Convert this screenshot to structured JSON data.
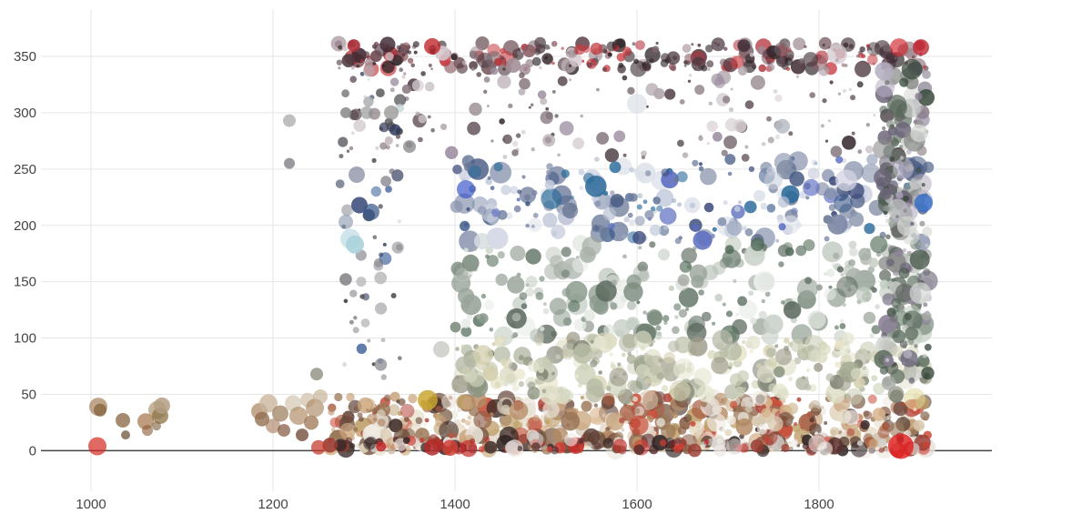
{
  "chart_data": {
    "type": "scatter",
    "title": "",
    "xlabel": "",
    "ylabel": "",
    "xlim": [
      945,
      1990
    ],
    "ylim": [
      -36,
      392
    ],
    "x_ticks": [
      1000,
      1200,
      1400,
      1600,
      1800
    ],
    "y_ticks": [
      0,
      50,
      100,
      150,
      200,
      250,
      300,
      350
    ],
    "x_tick_labels": [
      "1000",
      "1200",
      "1400",
      "1600",
      "1800"
    ],
    "y_tick_labels": [
      "0",
      "50",
      "100",
      "150",
      "200",
      "250",
      "300",
      "350"
    ],
    "grid": true,
    "legend": "none",
    "zero_line_color": "#444444",
    "encoding": "x = year, y = hue angle (degrees), point size and fill = size and color of each item",
    "points": [
      {
        "x": 1007,
        "y": 4,
        "size": 10,
        "color": "#d42b24"
      },
      {
        "x": 1008,
        "y": 39,
        "size": 10,
        "color": "#a07a50"
      },
      {
        "x": 1010,
        "y": 36,
        "size": 7,
        "color": "#8b6a44"
      },
      {
        "x": 1035,
        "y": 27,
        "size": 8,
        "color": "#9c7d60"
      },
      {
        "x": 1038,
        "y": 14,
        "size": 5,
        "color": "#6e5338"
      },
      {
        "x": 1060,
        "y": 26,
        "size": 9,
        "color": "#a27246"
      },
      {
        "x": 1062,
        "y": 18,
        "size": 6,
        "color": "#8c5e3a"
      },
      {
        "x": 1073,
        "y": 36,
        "size": 10,
        "color": "#9f8052"
      },
      {
        "x": 1076,
        "y": 31,
        "size": 9,
        "color": "#8c7044"
      },
      {
        "x": 1078,
        "y": 40,
        "size": 9,
        "color": "#b39e84"
      },
      {
        "x": 1072,
        "y": 22,
        "size": 5,
        "color": "#7a5a3a"
      },
      {
        "x": 1185,
        "y": 35,
        "size": 9,
        "color": "#b59272"
      },
      {
        "x": 1188,
        "y": 28,
        "size": 8,
        "color": "#8f6b4c"
      },
      {
        "x": 1195,
        "y": 42,
        "size": 10,
        "color": "#c8b49a"
      },
      {
        "x": 1200,
        "y": 22,
        "size": 8,
        "color": "#a07050"
      },
      {
        "x": 1208,
        "y": 33,
        "size": 9,
        "color": "#9a7a58"
      },
      {
        "x": 1212,
        "y": 18,
        "size": 7,
        "color": "#7a4a30"
      },
      {
        "x": 1218,
        "y": 293,
        "size": 7,
        "color": "#8c8c8c"
      },
      {
        "x": 1218,
        "y": 255,
        "size": 6,
        "color": "#6f6f75"
      },
      {
        "x": 1222,
        "y": 42,
        "size": 9,
        "color": "#c9b79f"
      },
      {
        "x": 1228,
        "y": 31,
        "size": 10,
        "color": "#b08a66"
      },
      {
        "x": 1232,
        "y": 14,
        "size": 7,
        "color": "#6a4330"
      },
      {
        "x": 1238,
        "y": 45,
        "size": 8,
        "color": "#d5c7b3"
      },
      {
        "x": 1242,
        "y": 25,
        "size": 8,
        "color": "#9d7553"
      },
      {
        "x": 1246,
        "y": 38,
        "size": 10,
        "color": "#a6815c"
      },
      {
        "x": 1248,
        "y": 68,
        "size": 7,
        "color": "#9a9a8c"
      },
      {
        "x": 1250,
        "y": 3,
        "size": 8,
        "color": "#c53a2c"
      },
      {
        "x": 1252,
        "y": 48,
        "size": 8,
        "color": "#c0ab8e"
      }
    ],
    "clusters": [
      {
        "x_min": 1262,
        "x_max": 1920,
        "y_min": 0,
        "y_max": 48,
        "count": 620,
        "palette": [
          "#c8a27a",
          "#b48a64",
          "#9a7656",
          "#7a5a44",
          "#5b3f33",
          "#3f2c27",
          "#d8c8ae",
          "#e6dcc6",
          "#a55a3e",
          "#c94d39",
          "#e8e2d8",
          "#bfa06a",
          "#8c6048",
          "#d9b48c",
          "#f0ece4",
          "#b2443a",
          "#6b4a3c",
          "#cfc2b0"
        ],
        "r_min": 2,
        "r_max": 11
      },
      {
        "x_min": 1262,
        "x_max": 1920,
        "y_min": 0,
        "y_max": 10,
        "count": 140,
        "palette": [
          "#c32d2a",
          "#d43f35",
          "#3a2a2a",
          "#5a3030",
          "#efeae6",
          "#d8d3cf",
          "#9a3a30",
          "#2f2222"
        ],
        "r_min": 3,
        "r_max": 10
      },
      {
        "x_min": 1270,
        "x_max": 1920,
        "y_min": 338,
        "y_max": 362,
        "count": 320,
        "palette": [
          "#5a3c44",
          "#6d4a52",
          "#3f2a33",
          "#8a5a62",
          "#b2323a",
          "#c83a40",
          "#7a6a70",
          "#a08c94",
          "#d4c6cc",
          "#4a3a40",
          "#2c2226"
        ],
        "r_min": 1.5,
        "r_max": 9
      },
      {
        "x_min": 1270,
        "x_max": 1920,
        "y_min": 260,
        "y_max": 338,
        "count": 160,
        "palette": [
          "#4b3a42",
          "#6a5a62",
          "#8a7c82",
          "#b3a8ae",
          "#d8d0d4",
          "#3a2e34",
          "#9c8ea0"
        ],
        "r_min": 1.5,
        "r_max": 8
      },
      {
        "x_min": 1400,
        "x_max": 1920,
        "y_min": 185,
        "y_max": 260,
        "count": 260,
        "palette": [
          "#8a94ac",
          "#a4aec4",
          "#c4ccdc",
          "#dde2ea",
          "#5a6a8a",
          "#3c5a8a",
          "#2a6a9a",
          "#6a7a9a",
          "#4c5e86",
          "#b8c0d2",
          "#7a86a4",
          "#cfd4e2",
          "#3b4a7a",
          "#5b6cc0"
        ],
        "r_min": 2,
        "r_max": 12
      },
      {
        "x_min": 1400,
        "x_max": 1920,
        "y_min": 100,
        "y_max": 185,
        "count": 300,
        "palette": [
          "#9aa49a",
          "#b6beb6",
          "#c8d0c8",
          "#8a9a8c",
          "#6a7c6e",
          "#dde4dc",
          "#a8b0a8",
          "#5c6a5e",
          "#7a8a7c",
          "#e8ece8",
          "#4f6a56",
          "#c4cec2"
        ],
        "r_min": 2,
        "r_max": 12
      },
      {
        "x_min": 1400,
        "x_max": 1920,
        "y_min": 48,
        "y_max": 100,
        "count": 320,
        "palette": [
          "#c9ccb4",
          "#b8bca4",
          "#dcdcc4",
          "#a4aa92",
          "#8c9480",
          "#e6e6d2",
          "#d4d0b0",
          "#9c9a88",
          "#e8e4c8",
          "#7c8070",
          "#cfd4bc",
          "#b6b8a6"
        ],
        "r_min": 2,
        "r_max": 12
      },
      {
        "x_min": 1870,
        "x_max": 1920,
        "y_min": 60,
        "y_max": 340,
        "count": 220,
        "palette": [
          "#8a8c8a",
          "#6a6e6a",
          "#a4a8a4",
          "#4c5a4e",
          "#c4c8c4",
          "#6b6478",
          "#8a8096",
          "#3a4a3c",
          "#d6d8d4",
          "#5a6a5c",
          "#b4aec0"
        ],
        "r_min": 2,
        "r_max": 12
      },
      {
        "x_min": 1270,
        "x_max": 1340,
        "y_min": 60,
        "y_max": 340,
        "count": 60,
        "palette": [
          "#6a6a70",
          "#8a8a90",
          "#4a4a50",
          "#2f3a5a",
          "#4a6aa0",
          "#b0b0b4",
          "#3a3a3e",
          "#c9d4d8"
        ],
        "r_min": 2,
        "r_max": 7
      }
    ],
    "highlights": [
      {
        "x": 1303,
        "y": 300,
        "size": 7,
        "color": "#8e8e8e"
      },
      {
        "x": 1280,
        "y": 300,
        "size": 6,
        "color": "#8a8a8a"
      },
      {
        "x": 1292,
        "y": 245,
        "size": 9,
        "color": "#6a6f8c"
      },
      {
        "x": 1295,
        "y": 218,
        "size": 9,
        "color": "#3a4a7a"
      },
      {
        "x": 1280,
        "y": 203,
        "size": 8,
        "color": "#7f8fa6"
      },
      {
        "x": 1285,
        "y": 188,
        "size": 11,
        "color": "#c8e0e8"
      },
      {
        "x": 1290,
        "y": 183,
        "size": 10,
        "color": "#a9d1da"
      },
      {
        "x": 1308,
        "y": 212,
        "size": 9,
        "color": "#3c5a8a"
      },
      {
        "x": 1330,
        "y": 300,
        "size": 8,
        "color": "#8a8a88"
      },
      {
        "x": 1350,
        "y": 270,
        "size": 7,
        "color": "#7a7a7c"
      },
      {
        "x": 1375,
        "y": 359,
        "size": 9,
        "color": "#c0262a"
      },
      {
        "x": 1385,
        "y": 90,
        "size": 9,
        "color": "#b0b0ac"
      },
      {
        "x": 1375,
        "y": 3,
        "size": 9,
        "color": "#b32a2a"
      },
      {
        "x": 1370,
        "y": 45,
        "size": 11,
        "color": "#c9a730"
      },
      {
        "x": 1412,
        "y": 232,
        "size": 10,
        "color": "#3654c8"
      },
      {
        "x": 1430,
        "y": 186,
        "size": 9,
        "color": "#d6dde0"
      },
      {
        "x": 1600,
        "y": 308,
        "size": 11,
        "color": "#dde0e6"
      },
      {
        "x": 1740,
        "y": 150,
        "size": 12,
        "color": "#eef0ee"
      },
      {
        "x": 1750,
        "y": 240,
        "size": 10,
        "color": "#c5ccd8"
      },
      {
        "x": 1760,
        "y": 288,
        "size": 8,
        "color": "#b7bcc4"
      },
      {
        "x": 1890,
        "y": 4,
        "size": 14,
        "color": "#e02424"
      },
      {
        "x": 1912,
        "y": 358,
        "size": 9,
        "color": "#c32a35"
      },
      {
        "x": 1888,
        "y": 358,
        "size": 10,
        "color": "#d32a30"
      },
      {
        "x": 1820,
        "y": 352,
        "size": 11,
        "color": "#d3c8cf"
      },
      {
        "x": 1830,
        "y": 240,
        "size": 12,
        "color": "#d4d4e4"
      },
      {
        "x": 1915,
        "y": 220,
        "size": 10,
        "color": "#2f6bc8"
      },
      {
        "x": 1905,
        "y": 46,
        "size": 12,
        "color": "#e0d89c"
      }
    ]
  }
}
